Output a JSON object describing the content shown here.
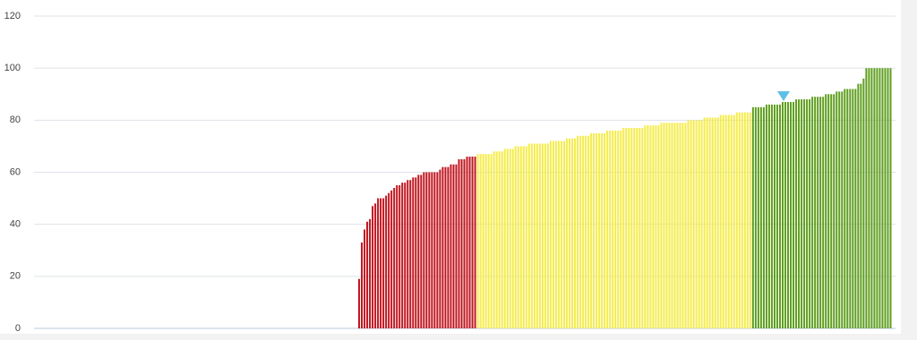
{
  "chart_data": {
    "type": "bar",
    "ylim": [
      0,
      120
    ],
    "yticks": [
      0,
      20,
      40,
      60,
      80,
      100,
      120
    ],
    "grid": true,
    "series": [
      {
        "color": "#c0141e",
        "values": [
          0,
          0,
          0,
          0,
          0,
          0,
          0,
          0,
          0,
          0,
          0,
          0,
          0,
          0,
          0,
          0,
          0,
          0,
          0,
          0,
          0,
          0,
          0,
          0,
          0,
          0,
          0,
          0,
          0,
          0,
          0,
          0,
          0,
          0,
          0,
          0,
          0,
          0,
          0,
          0,
          0,
          0,
          0,
          0,
          0,
          0,
          0,
          0,
          0,
          0,
          0,
          0,
          0,
          0,
          0,
          0,
          0,
          0,
          0,
          0,
          0,
          0,
          0,
          0,
          0,
          0,
          0,
          0,
          0,
          0,
          0,
          0,
          0,
          0,
          0,
          0,
          0,
          0,
          0,
          0,
          0,
          0,
          0,
          0,
          0,
          0,
          0,
          0,
          0,
          0,
          0,
          0,
          0,
          0,
          0,
          0,
          0,
          0,
          0,
          0,
          0,
          0,
          0,
          0,
          0,
          0,
          0,
          0,
          0,
          0,
          0,
          0,
          0,
          0,
          0,
          0,
          0,
          0,
          0,
          0
        ]
      },
      {
        "color": "#c0141e",
        "values": [
          19,
          33,
          38,
          41,
          42,
          47,
          48,
          50,
          50,
          50,
          51,
          52,
          53,
          54,
          55,
          55,
          56,
          56,
          57,
          57,
          58,
          58,
          59,
          59,
          60,
          60,
          60,
          60,
          60,
          60,
          61,
          62,
          62,
          62,
          63,
          63,
          63,
          65,
          65,
          65,
          66,
          66,
          66,
          66
        ]
      },
      {
        "color": "#f5ec4a",
        "values": [
          67,
          67,
          67,
          67,
          67,
          67,
          68,
          68,
          68,
          68,
          69,
          69,
          69,
          69,
          70,
          70,
          70,
          70,
          70,
          71,
          71,
          71,
          71,
          71,
          71,
          71,
          71,
          72,
          72,
          72,
          72,
          72,
          72,
          73,
          73,
          73,
          73,
          74,
          74,
          74,
          74,
          74,
          75,
          75,
          75,
          75,
          75,
          75,
          76,
          76,
          76,
          76,
          76,
          76,
          77,
          77,
          77,
          77,
          77,
          77,
          77,
          77,
          78,
          78,
          78,
          78,
          78,
          78,
          79,
          79,
          79,
          79,
          79,
          79,
          79,
          79,
          79,
          79,
          80,
          80,
          80,
          80,
          80,
          80,
          81,
          81,
          81,
          81,
          81,
          81,
          82,
          82,
          82,
          82,
          82,
          82,
          83,
          83,
          83,
          83,
          83,
          83
        ]
      },
      {
        "color": "#5e9e1e",
        "values": [
          85,
          85,
          85,
          85,
          85,
          86,
          86,
          86,
          86,
          86,
          86,
          87,
          87,
          87,
          87,
          87,
          88,
          88,
          88,
          88,
          88,
          88,
          89,
          89,
          89,
          89,
          89,
          90,
          90,
          90,
          90,
          91,
          91,
          91,
          92,
          92,
          92,
          92,
          92,
          94,
          94,
          96,
          100,
          100,
          100,
          100,
          100,
          100,
          100,
          100,
          100,
          100
        ]
      }
    ]
  }
}
